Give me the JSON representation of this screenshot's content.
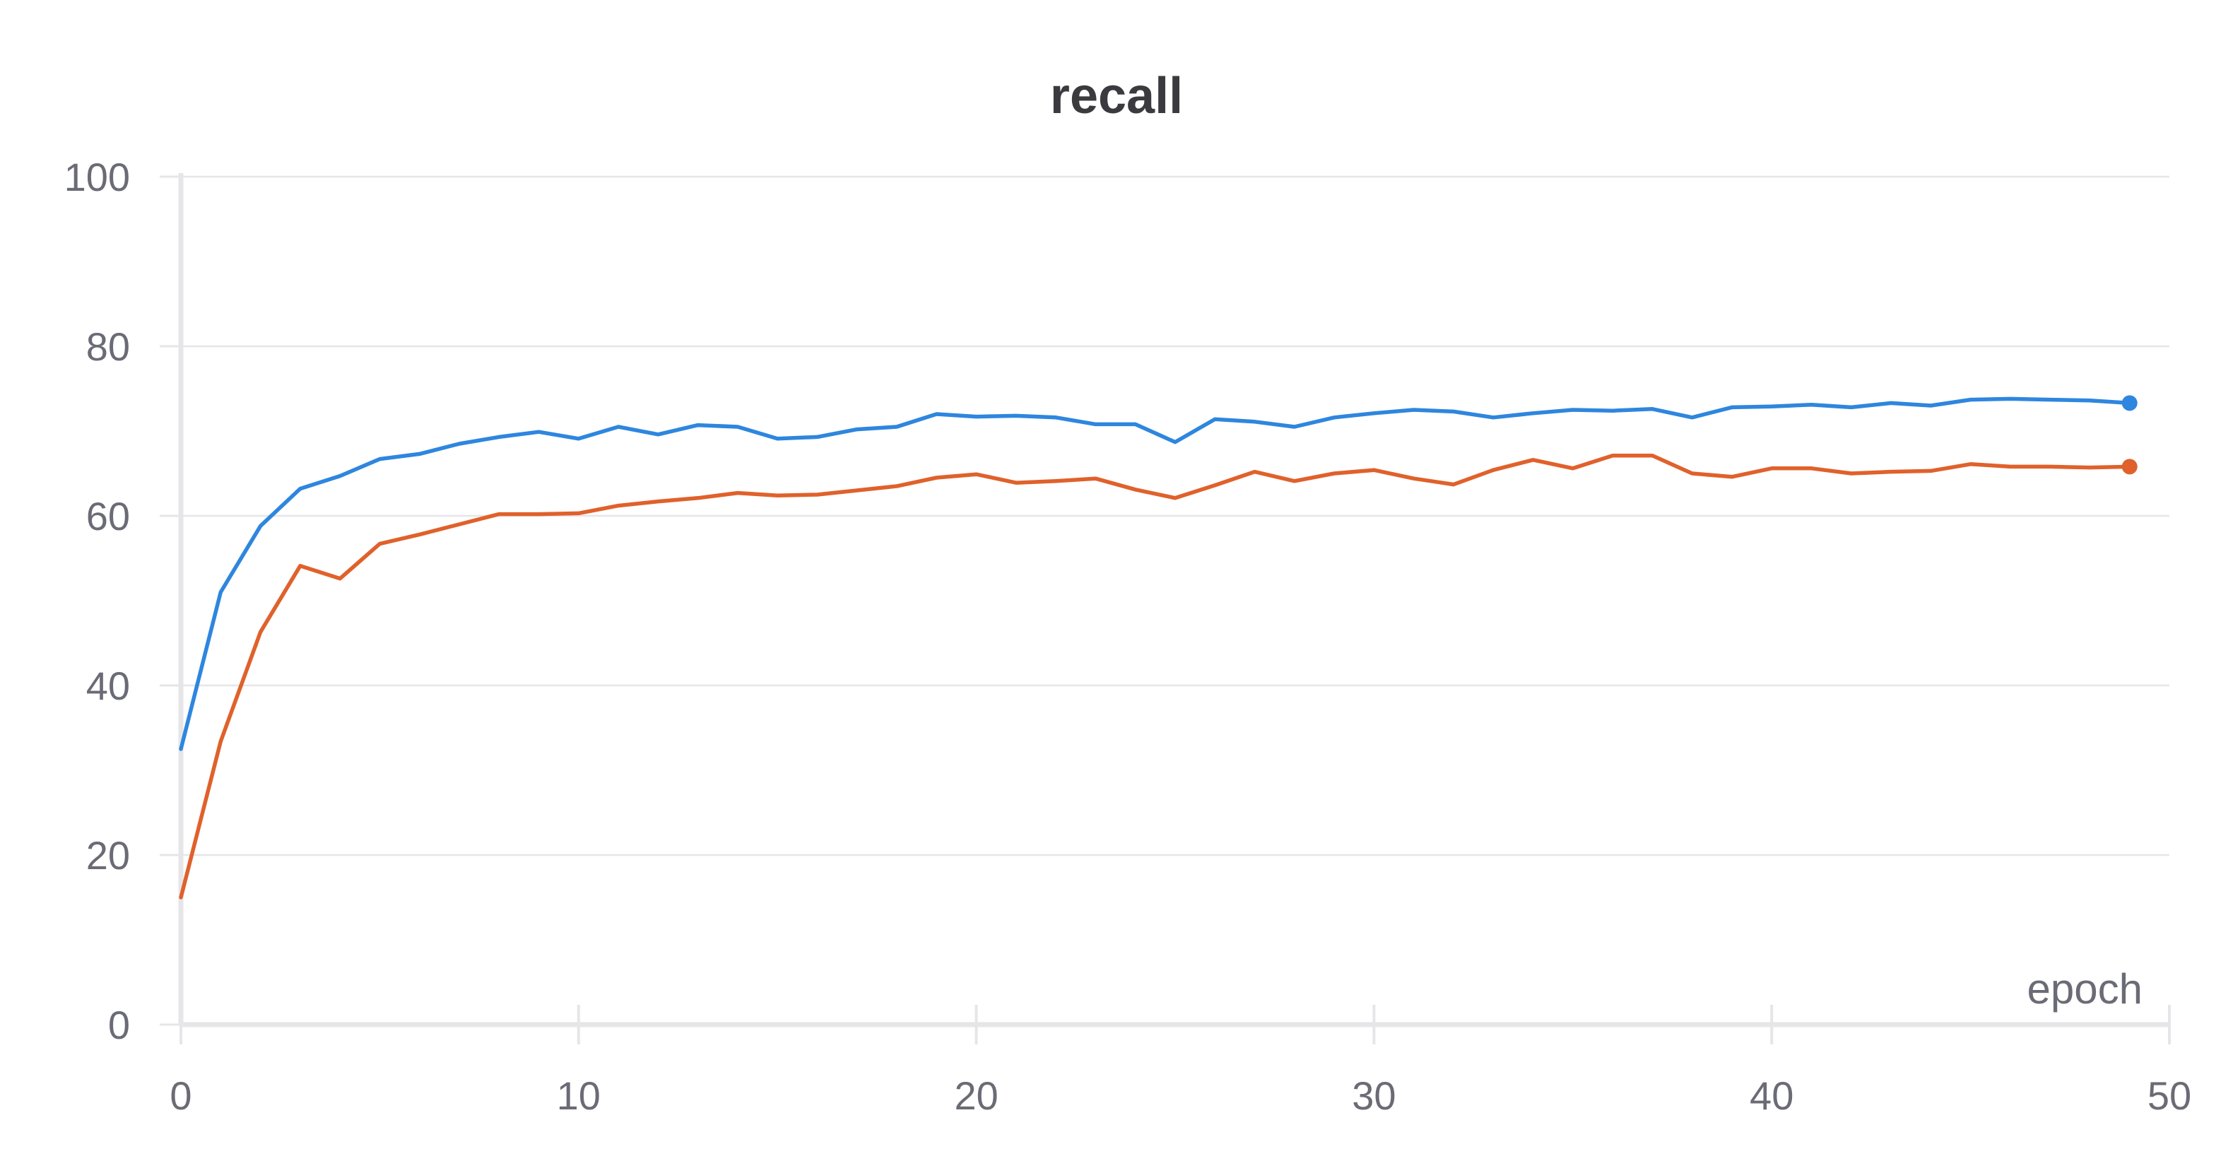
{
  "chart_data": {
    "type": "line",
    "title": "recall",
    "xlabel": "epoch",
    "ylabel": "",
    "xlim": [
      0,
      50
    ],
    "ylim": [
      0,
      100
    ],
    "x_ticks": [
      0,
      10,
      20,
      30,
      40,
      50
    ],
    "y_ticks": [
      0,
      20,
      40,
      60,
      80,
      100
    ],
    "grid": true,
    "x": [
      0,
      1,
      2,
      3,
      4,
      5,
      6,
      7,
      8,
      9,
      10,
      11,
      12,
      13,
      14,
      15,
      16,
      17,
      18,
      19,
      20,
      21,
      22,
      23,
      24,
      25,
      26,
      27,
      28,
      29,
      30,
      31,
      32,
      33,
      34,
      35,
      36,
      37,
      38,
      39,
      40,
      41,
      42,
      43,
      44,
      45,
      46,
      47,
      48,
      49
    ],
    "series": [
      {
        "color": "#2e86de",
        "values": [
          32.5,
          51.0,
          58.8,
          63.2,
          64.7,
          66.7,
          67.3,
          68.5,
          69.3,
          69.9,
          69.1,
          70.5,
          69.6,
          70.7,
          70.5,
          69.1,
          69.3,
          70.2,
          70.5,
          72.0,
          71.7,
          71.8,
          71.6,
          70.8,
          70.8,
          68.7,
          71.4,
          71.1,
          70.5,
          71.6,
          72.1,
          72.5,
          72.3,
          71.6,
          72.1,
          72.5,
          72.4,
          72.6,
          71.6,
          72.8,
          72.9,
          73.1,
          72.8,
          73.3,
          73.0,
          73.7,
          73.8,
          73.7,
          73.6,
          73.3
        ]
      },
      {
        "color": "#e0612b",
        "values": [
          15.0,
          33.4,
          46.3,
          54.1,
          52.6,
          56.7,
          57.8,
          59.0,
          60.2,
          60.2,
          60.3,
          61.2,
          61.7,
          62.1,
          62.7,
          62.4,
          62.5,
          63.0,
          63.5,
          64.5,
          64.9,
          63.9,
          64.1,
          64.4,
          63.1,
          62.1,
          63.6,
          65.2,
          64.1,
          65.0,
          65.4,
          64.4,
          63.7,
          65.4,
          66.6,
          65.6,
          67.1,
          67.1,
          65.0,
          64.6,
          65.6,
          65.6,
          65.0,
          65.2,
          65.3,
          66.1,
          65.8,
          65.8,
          65.7,
          65.8
        ]
      }
    ]
  }
}
